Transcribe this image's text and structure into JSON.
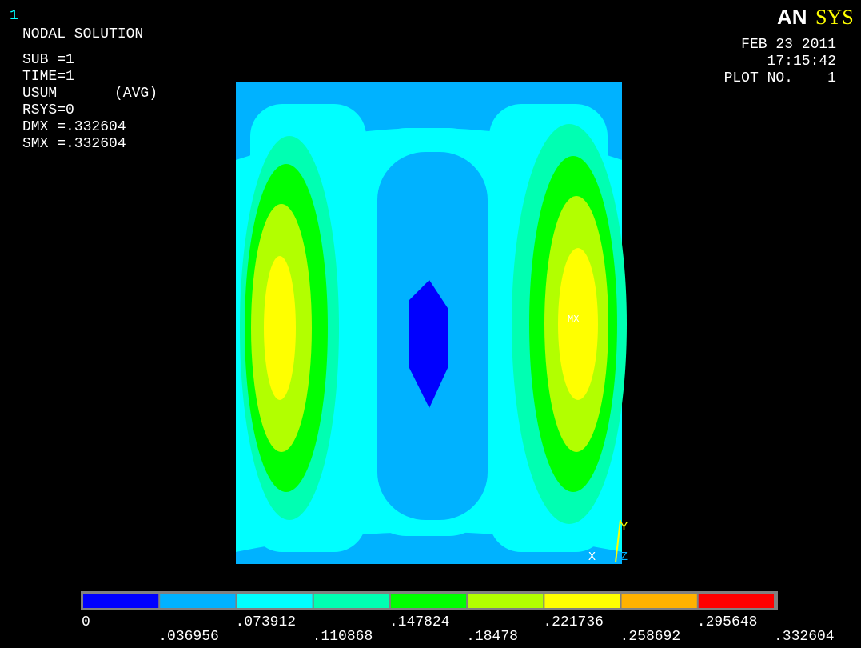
{
  "window_number": "1",
  "info": {
    "lines": [
      "NODAL SOLUTION",
      "SUB =1",
      "TIME=1",
      "USUM",
      "(AVG)",
      "RSYS=0",
      "DMX =.332604",
      "SMX =.332604"
    ]
  },
  "logo": [
    "AN",
    "SYS"
  ],
  "stamp": [
    "FEB 23 2011",
    "17:15:42",
    "PLOT NO.    1"
  ],
  "plot": {
    "max_label": "MX",
    "axes": [
      "X",
      "Y",
      "Z"
    ]
  },
  "legend": {
    "colors": [
      "#0000ff",
      "#00b2ff",
      "#00ffff",
      "#00ffb2",
      "#00ff00",
      "#b2ff00",
      "#ffff00",
      "#ffb200",
      "#ff0000"
    ],
    "labels": [
      "0",
      ".036956",
      ".073912",
      ".110868",
      ".147824",
      ".18478",
      ".221736",
      ".258692",
      ".295648",
      ".332604"
    ]
  }
}
